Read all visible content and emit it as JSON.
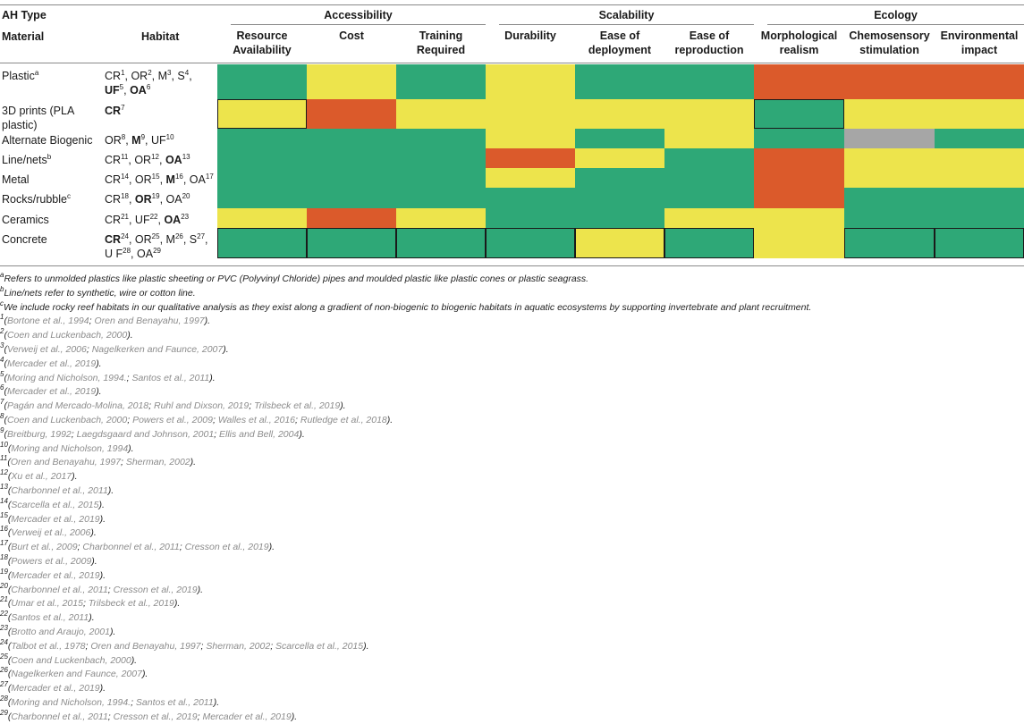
{
  "header": {
    "ah_type": "AH Type",
    "material": "Material",
    "habitat": "Habitat",
    "groups": [
      "Accessibility",
      "Scalability",
      "Ecology"
    ],
    "columns": [
      [
        "Resource",
        "Availability"
      ],
      [
        "Cost"
      ],
      [
        "Training",
        "Required"
      ],
      [
        "Durability"
      ],
      [
        "Ease of",
        "deployment"
      ],
      [
        "Ease of",
        "reproduction"
      ],
      [
        "Morphological",
        "realism"
      ],
      [
        "Chemosensory",
        "stimulation"
      ],
      [
        "Environmental",
        "impact"
      ]
    ]
  },
  "colors": {
    "green": "#2ea877",
    "yellow": "#ede44c",
    "orange": "#db5a2b",
    "gray": "#a6a6a6"
  },
  "rows": [
    {
      "material": "Plastic",
      "material_sup": "a",
      "habitat_lines": [
        [
          [
            "CR",
            "1",
            false
          ],
          [
            ", OR",
            "2",
            false
          ],
          [
            ", M",
            "3",
            false
          ],
          [
            ", S",
            "4",
            false
          ],
          [
            ",",
            null,
            false
          ]
        ],
        [
          [
            "UF",
            "5",
            true
          ],
          [
            ", ",
            null,
            false
          ],
          [
            "OA",
            "6",
            true
          ]
        ]
      ]
    },
    {
      "material": "3D prints (PLA",
      "material_line2": "plastic)",
      "habitat_lines": [
        [
          [
            "CR",
            "7",
            true
          ]
        ]
      ]
    },
    {
      "material": "Alternate Biogenic",
      "habitat_lines": [
        [
          [
            "OR",
            "8",
            false
          ],
          [
            ", ",
            null,
            false
          ],
          [
            "M",
            "9",
            true
          ],
          [
            ", UF",
            "10",
            false
          ]
        ]
      ]
    },
    {
      "material": "Line/nets",
      "material_sup": "b",
      "habitat_lines": [
        [
          [
            "CR",
            "11",
            false
          ],
          [
            ", OR",
            "12",
            false
          ],
          [
            ", ",
            null,
            false
          ],
          [
            "OA",
            "13",
            true
          ]
        ]
      ]
    },
    {
      "material": "Metal",
      "habitat_lines": [
        [
          [
            "CR",
            "14",
            false
          ],
          [
            ", OR",
            "15",
            false
          ],
          [
            ", ",
            null,
            false
          ],
          [
            "M",
            "16",
            true
          ],
          [
            ", OA",
            "17",
            false
          ]
        ]
      ]
    },
    {
      "material": "Rocks/rubble",
      "material_sup": "c",
      "habitat_lines": [
        [
          [
            "CR",
            "18",
            false
          ],
          [
            ", ",
            null,
            false
          ],
          [
            "OR",
            "19",
            true
          ],
          [
            ", OA",
            "20",
            false
          ]
        ]
      ]
    },
    {
      "material": "Ceramics",
      "habitat_lines": [
        [
          [
            "CR",
            "21",
            false
          ],
          [
            ", UF",
            "22",
            false
          ],
          [
            ", ",
            null,
            false
          ],
          [
            "OA",
            "23",
            true
          ]
        ]
      ]
    },
    {
      "material": "Concrete",
      "habitat_lines": [
        [
          [
            "CR",
            "24",
            true
          ],
          [
            ", OR",
            "25",
            false
          ],
          [
            ", M",
            "26",
            false
          ],
          [
            ", S",
            "27",
            false
          ],
          [
            ",",
            null,
            false
          ]
        ],
        [
          [
            "U F",
            "28",
            false
          ],
          [
            ", OA",
            "29",
            false
          ]
        ]
      ]
    }
  ],
  "footnotes": [
    {
      "sup": "a",
      "text": "Refers to unmolded plastics like plastic sheeting or PVC (Polyvinyl Chloride) pipes and moulded plastic like plastic cones or plastic seagrass."
    },
    {
      "sup": "b",
      "text": "Line/nets refer to synthetic, wire or cotton line."
    },
    {
      "sup": "c",
      "text": "We include rocky reef habitats in our qualitative analysis as they exist along a gradient of non-biogenic to biogenic habitats in aquatic ecosystems by supporting invertebrate and plant recruitment."
    }
  ],
  "references": [
    {
      "n": "1",
      "parts": [
        "Bortone et al., 1994",
        "Oren and Benayahu, 1997"
      ]
    },
    {
      "n": "2",
      "parts": [
        "Coen and Luckenbach, 2000"
      ]
    },
    {
      "n": "3",
      "parts": [
        "Verweij et al., 2006",
        "Nagelkerken and Faunce, 2007"
      ]
    },
    {
      "n": "4",
      "parts": [
        "Mercader et al., 2019"
      ]
    },
    {
      "n": "5",
      "parts": [
        "Moring and Nicholson, 1994.",
        "Santos et al., 2011"
      ]
    },
    {
      "n": "6",
      "parts": [
        "Mercader et al., 2019"
      ]
    },
    {
      "n": "7",
      "parts": [
        "Pagán and Mercado-Molina, 2018",
        "Ruhl and Dixson, 2019",
        "Trilsbeck et al., 2019"
      ]
    },
    {
      "n": "8",
      "parts": [
        "Coen and Luckenbach, 2000",
        "Powers et al., 2009",
        "Walles et al., 2016",
        "Rutledge et al., 2018"
      ]
    },
    {
      "n": "9",
      "parts": [
        "Breitburg, 1992",
        "Laegdsgaard and Johnson, 2001",
        "Ellis and Bell, 2004"
      ]
    },
    {
      "n": "10",
      "parts": [
        "Moring and Nicholson, 1994"
      ]
    },
    {
      "n": "11",
      "parts": [
        "Oren and Benayahu, 1997",
        "Sherman, 2002"
      ]
    },
    {
      "n": "12",
      "parts": [
        "Xu et al., 2017"
      ]
    },
    {
      "n": "13",
      "parts": [
        "Charbonnel et al., 2011"
      ]
    },
    {
      "n": "14",
      "parts": [
        "Scarcella et al., 2015"
      ]
    },
    {
      "n": "15",
      "parts": [
        "Mercader et al., 2019"
      ]
    },
    {
      "n": "16",
      "parts": [
        "Verweij et al., 2006"
      ]
    },
    {
      "n": "17",
      "parts": [
        "Burt et al., 2009",
        "Charbonnel et al., 2011",
        "Cresson et al., 2019"
      ]
    },
    {
      "n": "18",
      "parts": [
        "Powers et al., 2009"
      ]
    },
    {
      "n": "19",
      "parts": [
        "Mercader et al., 2019"
      ]
    },
    {
      "n": "20",
      "parts": [
        "Charbonnel et al., 2011",
        "Cresson et al., 2019"
      ]
    },
    {
      "n": "21",
      "parts": [
        "Umar et al., 2015",
        "Trilsbeck et al., 2019"
      ]
    },
    {
      "n": "22",
      "parts": [
        "Santos et al., 2011"
      ]
    },
    {
      "n": "23",
      "parts": [
        "Brotto and Araujo, 2001"
      ]
    },
    {
      "n": "24",
      "parts": [
        "Talbot et al., 1978",
        "Oren and Benayahu, 1997",
        "Sherman, 2002",
        "Scarcella et al., 2015"
      ]
    },
    {
      "n": "25",
      "parts": [
        "Coen and Luckenbach, 2000"
      ]
    },
    {
      "n": "26",
      "parts": [
        "Nagelkerken and Faunce, 2007"
      ]
    },
    {
      "n": "27",
      "parts": [
        "Mercader et al., 2019"
      ]
    },
    {
      "n": "28",
      "parts": [
        "Moring and Nicholson, 1994.",
        "Santos et al., 2011"
      ]
    },
    {
      "n": "29",
      "parts": [
        "Charbonnel et al., 2011",
        "Cresson et al., 2019",
        "Mercader et al., 2019"
      ]
    }
  ]
}
